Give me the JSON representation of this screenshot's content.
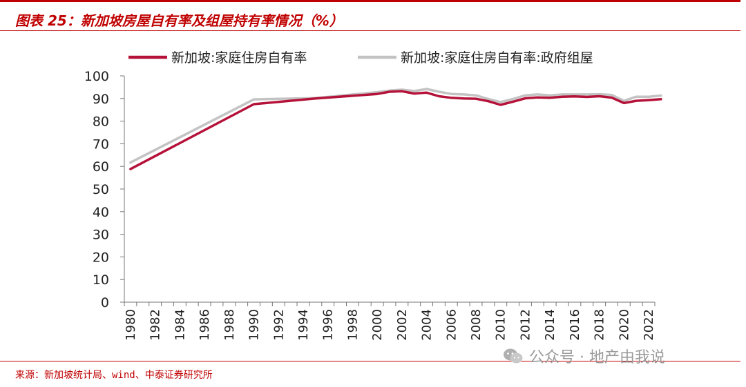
{
  "title": "图表 25：新加坡房屋自有率及组屋持有率情况（%）",
  "source": "来源：新加坡统计局、wind、中泰证券研究所",
  "watermark": "公众号 · 地产由我说",
  "colors": {
    "accent": "#c00000",
    "series1": "#b5123a",
    "series2": "#c3c3c3"
  },
  "chart_data": {
    "type": "line",
    "ylim": [
      0,
      100
    ],
    "yticks": [
      0,
      10,
      20,
      30,
      40,
      50,
      60,
      70,
      80,
      90,
      100
    ],
    "xlim": [
      1980,
      2023
    ],
    "xticks": [
      "1980",
      "1982",
      "1984",
      "1986",
      "1988",
      "1990",
      "1992",
      "1994",
      "1996",
      "1998",
      "2000",
      "2002",
      "2004",
      "2006",
      "2008",
      "2010",
      "2012",
      "2014",
      "2016",
      "2018",
      "2020",
      "2022"
    ],
    "legend": "top",
    "grid": false,
    "series": [
      {
        "name": "新加坡:家庭住房自有率",
        "points": [
          [
            1980,
            58.8
          ],
          [
            1990,
            87.5
          ],
          [
            1995,
            90.0
          ],
          [
            2000,
            92.0
          ],
          [
            2001,
            93.0
          ],
          [
            2002,
            93.2
          ],
          [
            2003,
            92.2
          ],
          [
            2004,
            92.6
          ],
          [
            2005,
            91.0
          ],
          [
            2006,
            90.3
          ],
          [
            2007,
            90.0
          ],
          [
            2008,
            89.9
          ],
          [
            2009,
            88.8
          ],
          [
            2010,
            87.2
          ],
          [
            2011,
            88.6
          ],
          [
            2012,
            90.1
          ],
          [
            2013,
            90.5
          ],
          [
            2014,
            90.3
          ],
          [
            2015,
            90.8
          ],
          [
            2016,
            90.9
          ],
          [
            2017,
            90.7
          ],
          [
            2018,
            91.0
          ],
          [
            2019,
            90.4
          ],
          [
            2020,
            88.0
          ],
          [
            2021,
            89.0
          ],
          [
            2022,
            89.3
          ],
          [
            2023,
            89.7
          ]
        ]
      },
      {
        "name": "新加坡:家庭住房自有率:政府组屋",
        "points": [
          [
            1980,
            61.7
          ],
          [
            1990,
            89.6
          ],
          [
            1995,
            90.2
          ],
          [
            2000,
            92.8
          ],
          [
            2001,
            93.5
          ],
          [
            2002,
            93.9
          ],
          [
            2003,
            93.3
          ],
          [
            2004,
            94.2
          ],
          [
            2005,
            93.0
          ],
          [
            2006,
            92.0
          ],
          [
            2007,
            91.8
          ],
          [
            2008,
            91.4
          ],
          [
            2009,
            89.8
          ],
          [
            2010,
            88.4
          ],
          [
            2011,
            89.8
          ],
          [
            2012,
            91.4
          ],
          [
            2013,
            91.8
          ],
          [
            2014,
            91.4
          ],
          [
            2015,
            91.8
          ],
          [
            2016,
            91.8
          ],
          [
            2017,
            91.8
          ],
          [
            2018,
            91.9
          ],
          [
            2019,
            91.6
          ],
          [
            2020,
            89.0
          ],
          [
            2021,
            90.8
          ],
          [
            2022,
            90.8
          ],
          [
            2023,
            91.3
          ]
        ]
      }
    ]
  }
}
